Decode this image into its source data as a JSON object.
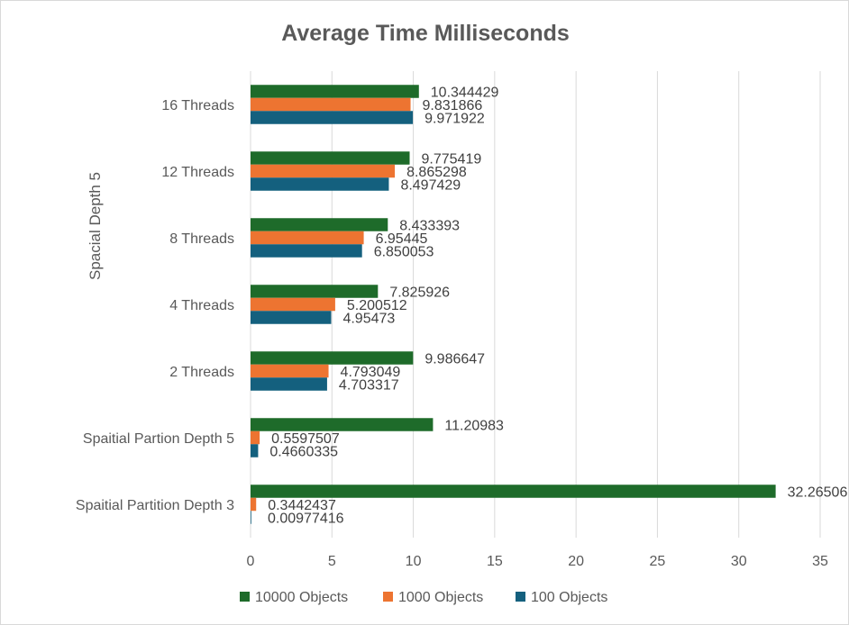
{
  "chart_data": {
    "type": "bar",
    "orientation": "horizontal",
    "title": "Average Time Milliseconds",
    "group_label": "Spacial Depth 5",
    "categories": [
      "16 Threads",
      "12 Threads",
      "8 Threads",
      "4 Threads",
      "2 Threads",
      "Spaitial Partion Depth 5",
      "Spaitial Partition Depth 3"
    ],
    "series": [
      {
        "name": "10000 Objects",
        "color": "#1e6b2a",
        "values": [
          10.344429,
          9.775419,
          8.433393,
          7.825926,
          9.986647,
          11.20983,
          32.26506
        ],
        "labels": [
          "10.344429",
          "9.775419",
          "8.433393",
          "7.825926",
          "9.986647",
          "11.20983",
          "32.26506"
        ]
      },
      {
        "name": "1000 Objects",
        "color": "#ed7431",
        "values": [
          9.831866,
          8.865298,
          6.95445,
          5.200512,
          4.793049,
          0.5597507,
          0.3442437
        ],
        "labels": [
          "9.831866",
          "8.865298",
          "6.95445",
          "5.200512",
          "4.793049",
          "0.5597507",
          "0.3442437"
        ]
      },
      {
        "name": "100 Objects",
        "color": "#14607e",
        "values": [
          9.971922,
          8.497429,
          6.850053,
          4.95473,
          4.703317,
          0.4660335,
          0.00977416
        ],
        "labels": [
          "9.971922",
          "8.497429",
          "6.850053",
          "4.95473",
          "4.703317",
          "0.4660335",
          "0.00977416"
        ]
      }
    ],
    "xlim": [
      0,
      35
    ],
    "x_ticks": [
      0,
      5,
      10,
      15,
      20,
      25,
      30,
      35
    ],
    "x_tick_labels": [
      "0",
      "5",
      "10",
      "15",
      "20",
      "25",
      "30",
      "35"
    ],
    "grid": true,
    "legend_position": "bottom"
  }
}
